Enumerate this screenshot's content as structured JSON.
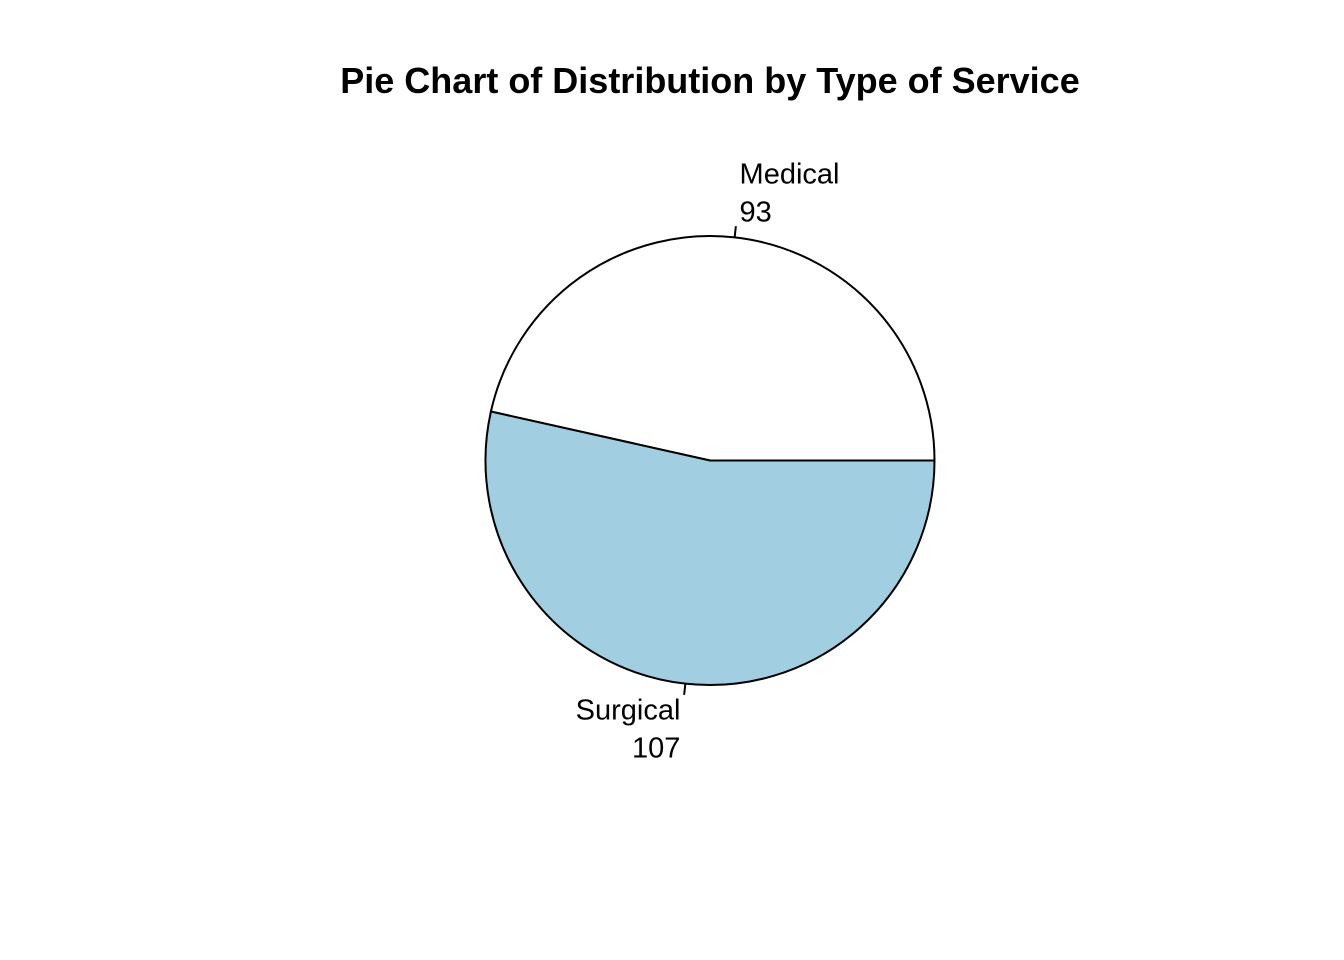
{
  "chart_data": {
    "type": "pie",
    "title": "Pie Chart of Distribution by Type of Service",
    "slices": [
      {
        "label": "Medical",
        "value": 93,
        "value_label": "93",
        "color": "#ffffff"
      },
      {
        "label": "Surgical",
        "value": 107,
        "value_label": "107",
        "color": "#a1cfe1"
      }
    ],
    "start_angle_deg": 0,
    "direction": "counterclockwise",
    "legend": "none",
    "border_color": "#000000"
  }
}
